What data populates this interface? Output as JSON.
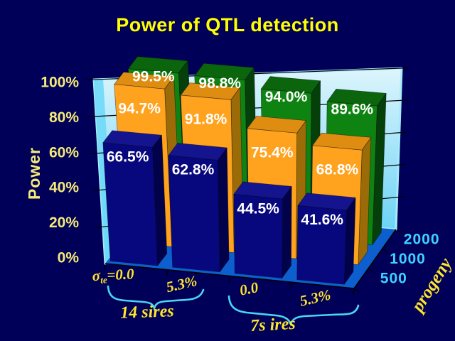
{
  "slide": {
    "border_color": "#000059",
    "background_top": "#3667FA",
    "background_bottom": "#2F3193"
  },
  "chart_data": {
    "type": "bar",
    "projection": "3d",
    "title": "Power of QTL detection",
    "value_axis": {
      "label": "Power",
      "ticks": [
        "0%",
        "20%",
        "40%",
        "60%",
        "80%",
        "100%"
      ],
      "min": 0,
      "max": 100,
      "grid": true
    },
    "category_axis": {
      "labels": [
        {
          "base": "σ",
          "sub": "te",
          "rest": "=0.0"
        },
        {
          "base": "",
          "sub": "",
          "rest": "5.3%"
        },
        {
          "base": "",
          "sub": "",
          "rest": "0.0"
        },
        {
          "base": "",
          "sub": "",
          "rest": "5.3%"
        }
      ],
      "groups": [
        {
          "label": "14 sires",
          "categories": [
            0,
            1
          ]
        },
        {
          "label": "7s ires",
          "categories": [
            2,
            3
          ]
        }
      ]
    },
    "depth_axis": {
      "label": "progeny",
      "ticks": [
        "500",
        "1000",
        "2000"
      ]
    },
    "series": [
      {
        "name": "500",
        "depth": 0,
        "values": [
          66.5,
          62.8,
          44.5,
          41.6
        ],
        "value_labels": [
          "66.5%",
          "62.8%",
          "44.5%",
          "41.6%"
        ],
        "face": "#07077E",
        "top": "#14148E",
        "side": "#02024A"
      },
      {
        "name": "1000",
        "depth": 1,
        "values": [
          94.7,
          91.8,
          75.4,
          68.8
        ],
        "value_labels": [
          "94.7%",
          "91.8%",
          "75.4%",
          "68.8%"
        ],
        "face": "#FFA21E",
        "top": "#DE8D10",
        "side": "#9A6B06"
      },
      {
        "name": "2000",
        "depth": 2,
        "values": [
          99.5,
          98.8,
          94.0,
          89.6
        ],
        "value_labels": [
          "99.5%",
          "98.8%",
          "94.0%",
          "89.6%"
        ],
        "face": "#0F8312",
        "top": "#0A650C",
        "side": "#05400A"
      }
    ],
    "colors": {
      "wall_top": "#DDF5FC",
      "wall_bottom": "#54CDF4",
      "wall_edge": "#A8EAFB",
      "wall_left_highlight": "#6ED9F8",
      "floor": "#0D5ECF",
      "grid": "#000000",
      "axis_line": "#000000",
      "value_tick_text": "#F6EA79",
      "category_text": "#FFE52B",
      "data_label_text": "#FFFFFF",
      "depth_tick_text": "#3ED2FF",
      "brace": "#49D6F0",
      "title_text": "#FFFF00"
    }
  }
}
